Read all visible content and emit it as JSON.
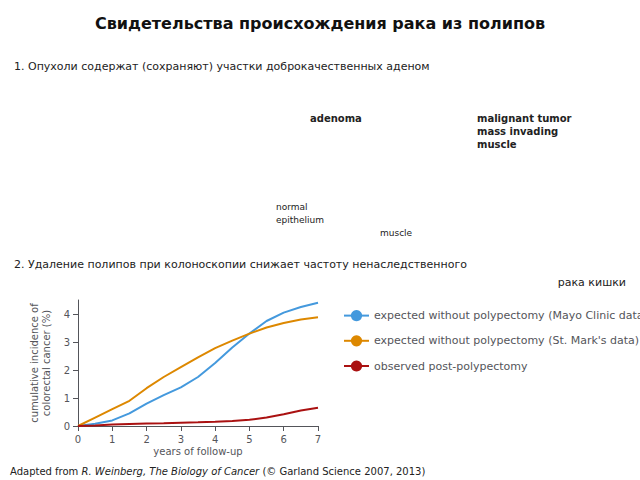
{
  "chart_data": {
    "type": "line",
    "title": "Свидетельства происхождения рака из полипов",
    "annotations": [
      "1. Опухоли содержат (сохраняют) участки доброкачественных аденом",
      "2. Удаление полипов при колоноскопии снижает частоту ненаследственного",
      "рака кишки",
      "adenoma",
      "malignant tumor\nmass invading\nmuscle",
      "normal\nepithelium",
      "muscle",
      "Adapted from ",
      "R. Weinberg, The Biology of Cancer",
      " (© Garland Science 2007, 2013)"
    ],
    "xlabel": "years of follow-up",
    "ylabel": "cumulative incidence of\ncolorectal cancer (%)",
    "x": [
      0,
      0.5,
      1,
      1.5,
      2,
      2.5,
      3,
      3.5,
      4,
      4.5,
      5,
      5.5,
      6,
      6.5,
      7
    ],
    "series": [
      {
        "name": "expected without polypectomy (Mayo Clinic data)",
        "color": "#4499dd",
        "values": [
          0,
          0.08,
          0.2,
          0.45,
          0.8,
          1.1,
          1.38,
          1.75,
          2.25,
          2.8,
          3.3,
          3.75,
          4.05,
          4.25,
          4.4
        ]
      },
      {
        "name": "expected without polypectomy (St. Mark's data)",
        "color": "#dd8800",
        "values": [
          0,
          0.3,
          0.6,
          0.9,
          1.35,
          1.75,
          2.1,
          2.45,
          2.78,
          3.05,
          3.3,
          3.52,
          3.68,
          3.8,
          3.88
        ]
      },
      {
        "name": "observed post-polypectomy",
        "color": "#aa1111",
        "values": [
          0,
          0.02,
          0.05,
          0.07,
          0.09,
          0.1,
          0.12,
          0.13,
          0.15,
          0.18,
          0.22,
          0.3,
          0.42,
          0.55,
          0.65
        ]
      }
    ],
    "xlim": [
      0,
      7
    ],
    "ylim": [
      0,
      4.5
    ],
    "xticks": [
      0,
      1,
      2,
      3,
      4,
      5,
      6,
      7
    ],
    "yticks": [
      0,
      1,
      2,
      3,
      4
    ],
    "grid": false,
    "legend": "right"
  }
}
